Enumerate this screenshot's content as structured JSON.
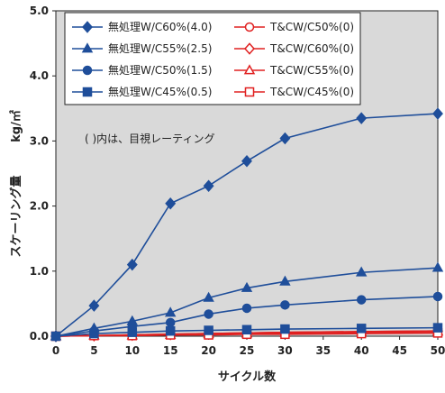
{
  "chart_data": {
    "type": "line",
    "xlabel": "サイクル数",
    "ylabel": "スケーリング量",
    "ylabel_unit": "kg/㎡",
    "annotation": "( )内は、目視レーティング",
    "x_ticks": [
      "0",
      "5",
      "10",
      "15",
      "20",
      "25",
      "30",
      "35",
      "40",
      "45",
      "50"
    ],
    "y_ticks": [
      "0.0",
      "1.0",
      "2.0",
      "3.0",
      "4.0",
      "5.0"
    ],
    "xlim": [
      0,
      50
    ],
    "ylim": [
      0,
      5
    ],
    "grid": false,
    "legend_placement": "top-left",
    "x": [
      0,
      5,
      10,
      15,
      20,
      25,
      30,
      40,
      50
    ],
    "series": [
      {
        "name": "無処理W/C60%(4.0)",
        "marker": "diamond",
        "filled": true,
        "color": "#1f4e9a",
        "values": [
          0.0,
          0.47,
          1.1,
          2.04,
          2.31,
          2.69,
          3.04,
          3.35,
          3.42
        ]
      },
      {
        "name": "無処理W/C55%(2.5)",
        "marker": "triangle",
        "filled": true,
        "color": "#1f4e9a",
        "values": [
          0.0,
          0.12,
          0.23,
          0.36,
          0.59,
          0.74,
          0.84,
          0.98,
          1.05
        ]
      },
      {
        "name": "無処理W/C50%(1.5)",
        "marker": "circle",
        "filled": true,
        "color": "#1f4e9a",
        "values": [
          0.0,
          0.08,
          0.15,
          0.21,
          0.34,
          0.43,
          0.48,
          0.56,
          0.61
        ]
      },
      {
        "name": "無処理W/C45%(0.5)",
        "marker": "square",
        "filled": true,
        "color": "#1f4e9a",
        "values": [
          0.0,
          0.04,
          0.06,
          0.08,
          0.09,
          0.1,
          0.11,
          0.12,
          0.13
        ]
      },
      {
        "name": "T&CW/C50%(0)",
        "marker": "circle",
        "filled": false,
        "color": "#e02020",
        "values": [
          0.0,
          0.01,
          0.02,
          0.03,
          0.04,
          0.05,
          0.06,
          0.07,
          0.08
        ]
      },
      {
        "name": "T&CW/C60%(0)",
        "marker": "diamond",
        "filled": false,
        "color": "#e02020",
        "values": [
          0.0,
          0.01,
          0.02,
          0.03,
          0.04,
          0.05,
          0.06,
          0.07,
          0.08
        ]
      },
      {
        "name": "T&CW/C55%(0)",
        "marker": "triangle",
        "filled": false,
        "color": "#e02020",
        "values": [
          0.0,
          0.01,
          0.01,
          0.02,
          0.03,
          0.04,
          0.05,
          0.06,
          0.07
        ]
      },
      {
        "name": "T&CW/C45%(0)",
        "marker": "square",
        "filled": false,
        "color": "#e02020",
        "values": [
          0.0,
          0.01,
          0.01,
          0.02,
          0.02,
          0.03,
          0.03,
          0.04,
          0.05
        ]
      }
    ],
    "legend_columns": [
      [
        "無処理W/C60%(4.0)",
        "無処理W/C55%(2.5)",
        "無処理W/C50%(1.5)",
        "無処理W/C45%(0.5)"
      ],
      [
        "T&CW/C50%(0)",
        "T&CW/C60%(0)",
        "T&CW/C55%(0)",
        "T&CW/C45%(0)"
      ]
    ],
    "colors": {
      "plot_background": "#d9d9d9",
      "treated": "#e02020",
      "untreated": "#1f4e9a",
      "legend_background": "#ffffff"
    }
  }
}
